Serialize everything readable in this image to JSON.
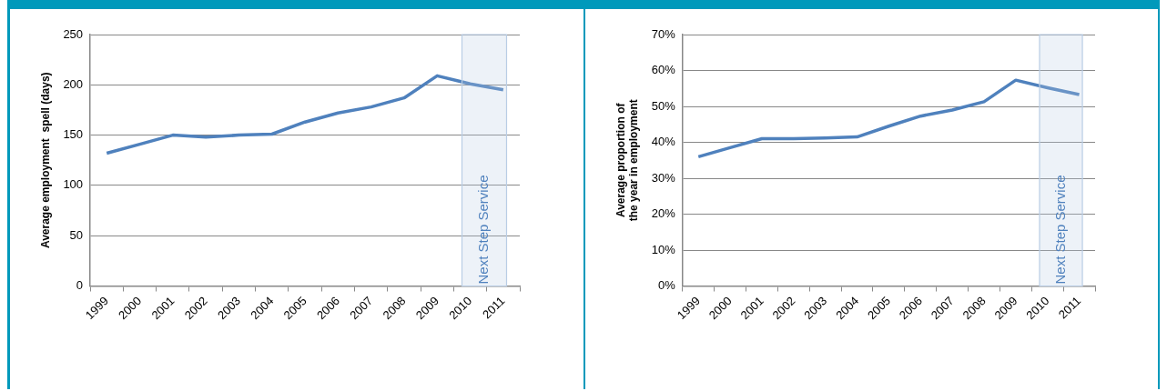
{
  "chart_data": [
    {
      "type": "line",
      "ylabel": "Average employment  spell (days)",
      "categories": [
        "1999",
        "2000",
        "2001",
        "2002",
        "2003",
        "2004",
        "2005",
        "2006",
        "2007",
        "2008",
        "2009",
        "2010",
        "2011"
      ],
      "series": [
        {
          "color": "#4f81bd",
          "values": [
            132,
            141,
            150,
            148,
            150,
            151,
            163,
            172,
            178,
            187,
            209,
            201,
            195
          ]
        }
      ],
      "ylim": [
        0,
        250
      ],
      "yticks": [
        0,
        50,
        100,
        150,
        200,
        250
      ],
      "grid": "y",
      "legend": false,
      "marker": "none",
      "bands": [
        {
          "axis": "x",
          "from": "2010",
          "to": "2011",
          "label": "Next Step Service",
          "color": "#b9cde5"
        }
      ]
    },
    {
      "type": "line",
      "ylabel": "Average proportion of the year in employment",
      "categories": [
        "1999",
        "2000",
        "2001",
        "2002",
        "2003",
        "2004",
        "2005",
        "2006",
        "2007",
        "2008",
        "2009",
        "2010",
        "2011"
      ],
      "series": [
        {
          "color": "#4f81bd",
          "values": [
            36,
            38.5,
            41,
            41,
            41.2,
            41.5,
            44.5,
            47.3,
            49,
            51.3,
            57.3,
            55.2,
            53.3
          ]
        }
      ],
      "ylim": [
        0,
        70
      ],
      "yticks": [
        {
          "value": 0,
          "label": "0%"
        },
        {
          "value": 10,
          "label": "10%"
        },
        {
          "value": 20,
          "label": "20%"
        },
        {
          "value": 30,
          "label": "30%"
        },
        {
          "value": 40,
          "label": "40%"
        },
        {
          "value": 50,
          "label": "50%"
        },
        {
          "value": 60,
          "label": "60%"
        },
        {
          "value": 70,
          "label": "70%"
        }
      ],
      "grid": "y",
      "legend": false,
      "marker": "none",
      "bands": [
        {
          "axis": "x",
          "from": "2010",
          "to": "2011",
          "label": "Next Step Service",
          "color": "#b9cde5"
        }
      ]
    }
  ]
}
